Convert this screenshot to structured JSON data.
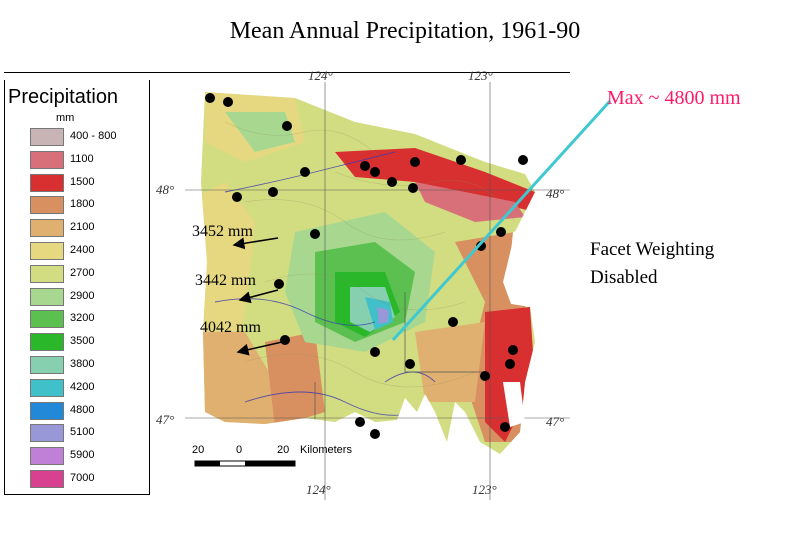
{
  "title": "Mean Annual Precipitation, 1961-90",
  "legend": {
    "title": "Precipitation",
    "unit": "mm",
    "classes": [
      {
        "label": "400 - 800",
        "color": "#c8b4b4"
      },
      {
        "label": "1100",
        "color": "#d8707a"
      },
      {
        "label": "1500",
        "color": "#d83030"
      },
      {
        "label": "1800",
        "color": "#d89060"
      },
      {
        "label": "2100",
        "color": "#e0b070"
      },
      {
        "label": "2400",
        "color": "#e6d880"
      },
      {
        "label": "2700",
        "color": "#d2dc80"
      },
      {
        "label": "2900",
        "color": "#a8d890"
      },
      {
        "label": "3200",
        "color": "#5cc050"
      },
      {
        "label": "3500",
        "color": "#2ab82a"
      },
      {
        "label": "3800",
        "color": "#86d0b0"
      },
      {
        "label": "4200",
        "color": "#40c0c8"
      },
      {
        "label": "4800",
        "color": "#2288d8"
      },
      {
        "label": "5100",
        "color": "#9898d8"
      },
      {
        "label": "5900",
        "color": "#c080d8"
      },
      {
        "label": "7000",
        "color": "#d84090"
      }
    ]
  },
  "graticule": {
    "lon_top": [
      "124°",
      "123°"
    ],
    "lon_bottom": [
      "124°",
      "123°"
    ],
    "lat_left": [
      "48°",
      "47°"
    ],
    "lat_right": [
      "48°",
      "47°"
    ]
  },
  "annotations": {
    "station_1": "3452 mm",
    "station_2": "3442 mm",
    "station_3": "4042 mm",
    "max": "Max ~ 4800 mm",
    "facet_line1": "Facet Weighting",
    "facet_line2": "Disabled"
  },
  "scale_bar": {
    "ticks": [
      "20",
      "0",
      "20"
    ],
    "unit": "Kilometers"
  },
  "colors": {
    "max_label": "#ff1a66",
    "leader_line": "#40c8d0",
    "station": "#000000"
  }
}
